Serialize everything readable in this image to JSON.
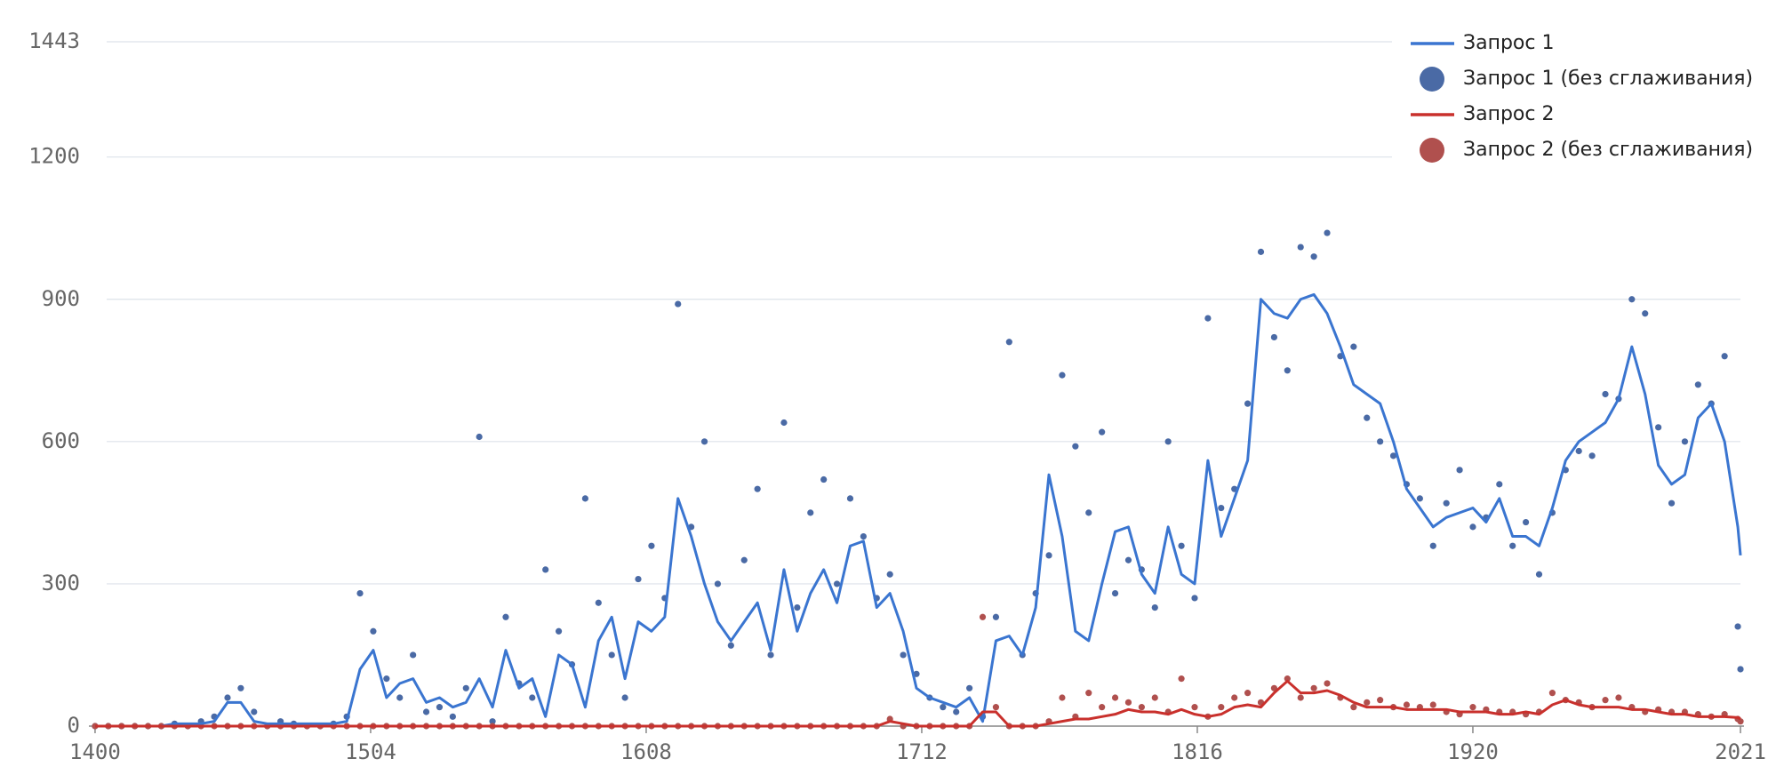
{
  "chart_data": {
    "type": "line",
    "x": [
      1400,
      1405,
      1410,
      1415,
      1420,
      1425,
      1430,
      1435,
      1440,
      1445,
      1450,
      1455,
      1460,
      1465,
      1470,
      1475,
      1480,
      1485,
      1490,
      1495,
      1500,
      1505,
      1510,
      1515,
      1520,
      1525,
      1530,
      1535,
      1540,
      1545,
      1550,
      1555,
      1560,
      1565,
      1570,
      1575,
      1580,
      1585,
      1590,
      1595,
      1600,
      1605,
      1610,
      1615,
      1620,
      1625,
      1630,
      1635,
      1640,
      1645,
      1650,
      1655,
      1660,
      1665,
      1670,
      1675,
      1680,
      1685,
      1690,
      1695,
      1700,
      1705,
      1710,
      1715,
      1720,
      1725,
      1730,
      1735,
      1740,
      1745,
      1750,
      1755,
      1760,
      1765,
      1770,
      1775,
      1780,
      1785,
      1790,
      1795,
      1800,
      1805,
      1810,
      1815,
      1820,
      1825,
      1830,
      1835,
      1840,
      1845,
      1850,
      1855,
      1860,
      1865,
      1870,
      1875,
      1880,
      1885,
      1890,
      1895,
      1900,
      1905,
      1910,
      1915,
      1920,
      1925,
      1930,
      1935,
      1940,
      1945,
      1950,
      1955,
      1960,
      1965,
      1970,
      1975,
      1980,
      1985,
      1990,
      1995,
      2000,
      2005,
      2010,
      2015,
      2020,
      2021
    ],
    "series": [
      {
        "name": "Запрос 1",
        "style": "line",
        "color": "#3a75d0",
        "values": [
          0,
          0,
          0,
          0,
          0,
          0,
          5,
          5,
          5,
          10,
          50,
          50,
          10,
          5,
          5,
          5,
          5,
          5,
          5,
          10,
          120,
          160,
          60,
          90,
          100,
          50,
          60,
          40,
          50,
          100,
          40,
          160,
          80,
          100,
          20,
          150,
          130,
          40,
          180,
          230,
          100,
          220,
          200,
          230,
          480,
          400,
          300,
          220,
          180,
          220,
          260,
          160,
          330,
          200,
          280,
          330,
          260,
          380,
          390,
          250,
          280,
          200,
          80,
          60,
          50,
          40,
          60,
          10,
          180,
          190,
          150,
          250,
          530,
          400,
          200,
          180,
          300,
          410,
          420,
          320,
          280,
          420,
          320,
          300,
          560,
          400,
          480,
          560,
          900,
          870,
          860,
          900,
          910,
          870,
          800,
          720,
          700,
          680,
          600,
          500,
          460,
          420,
          440,
          450,
          460,
          430,
          480,
          400,
          400,
          380,
          460,
          560,
          600,
          620,
          640,
          690,
          800,
          700,
          550,
          510,
          530,
          650,
          680,
          600,
          420,
          360
        ]
      },
      {
        "name": "Запрос 1 (без сглаживания)",
        "style": "points",
        "color": "#4a6aa5",
        "values": [
          0,
          0,
          0,
          0,
          0,
          0,
          5,
          0,
          10,
          20,
          60,
          80,
          30,
          0,
          10,
          5,
          0,
          0,
          5,
          20,
          280,
          200,
          100,
          60,
          150,
          30,
          40,
          20,
          80,
          610,
          10,
          230,
          90,
          60,
          330,
          200,
          130,
          480,
          260,
          150,
          60,
          310,
          380,
          270,
          890,
          420,
          600,
          300,
          170,
          350,
          500,
          150,
          640,
          250,
          450,
          520,
          300,
          480,
          400,
          270,
          320,
          150,
          110,
          60,
          40,
          30,
          80,
          20,
          230,
          810,
          150,
          280,
          360,
          740,
          590,
          450,
          620,
          280,
          350,
          330,
          250,
          600,
          380,
          270,
          860,
          460,
          500,
          680,
          1000,
          820,
          750,
          1010,
          990,
          1040,
          780,
          800,
          650,
          600,
          570,
          510,
          480,
          380,
          470,
          540,
          420,
          440,
          510,
          380,
          430,
          320,
          450,
          540,
          580,
          570,
          700,
          690,
          900,
          870,
          630,
          470,
          600,
          720,
          680,
          780,
          210,
          120
        ]
      },
      {
        "name": "Запрос 2",
        "style": "line",
        "color": "#c9302c",
        "values": [
          0,
          0,
          0,
          0,
          0,
          0,
          0,
          0,
          0,
          0,
          0,
          0,
          0,
          0,
          0,
          0,
          0,
          0,
          0,
          0,
          0,
          0,
          0,
          0,
          0,
          0,
          0,
          0,
          0,
          0,
          0,
          0,
          0,
          0,
          0,
          0,
          0,
          0,
          0,
          0,
          0,
          0,
          0,
          0,
          0,
          0,
          0,
          0,
          0,
          0,
          0,
          0,
          0,
          0,
          0,
          0,
          0,
          0,
          0,
          0,
          10,
          5,
          0,
          0,
          0,
          0,
          0,
          30,
          30,
          0,
          0,
          0,
          5,
          10,
          15,
          15,
          20,
          25,
          35,
          30,
          30,
          25,
          35,
          25,
          20,
          25,
          40,
          45,
          40,
          70,
          95,
          70,
          70,
          75,
          65,
          50,
          40,
          40,
          40,
          35,
          35,
          35,
          35,
          30,
          30,
          30,
          25,
          25,
          30,
          25,
          45,
          55,
          45,
          40,
          40,
          40,
          35,
          35,
          30,
          25,
          25,
          20,
          20,
          20,
          18,
          15
        ]
      },
      {
        "name": "Запрос 2 (без сглаживания)",
        "style": "points",
        "color": "#b0504e",
        "values": [
          0,
          0,
          0,
          0,
          0,
          0,
          0,
          0,
          0,
          0,
          0,
          0,
          0,
          0,
          0,
          0,
          0,
          0,
          0,
          0,
          0,
          0,
          0,
          0,
          0,
          0,
          0,
          0,
          0,
          0,
          0,
          0,
          0,
          0,
          0,
          0,
          0,
          0,
          0,
          0,
          0,
          0,
          0,
          0,
          0,
          0,
          0,
          0,
          0,
          0,
          0,
          0,
          0,
          0,
          0,
          0,
          0,
          0,
          0,
          0,
          15,
          0,
          0,
          0,
          0,
          0,
          0,
          230,
          40,
          0,
          0,
          0,
          10,
          60,
          20,
          70,
          40,
          60,
          50,
          40,
          60,
          30,
          100,
          40,
          20,
          40,
          60,
          70,
          50,
          80,
          100,
          60,
          80,
          90,
          60,
          40,
          50,
          55,
          40,
          45,
          40,
          45,
          30,
          25,
          40,
          35,
          30,
          30,
          25,
          30,
          70,
          55,
          50,
          40,
          55,
          60,
          40,
          30,
          35,
          30,
          30,
          25,
          20,
          25,
          15,
          10
        ]
      }
    ],
    "xlim": [
      1397,
      2023
    ],
    "xticks": [
      1400,
      1504,
      1608,
      1712,
      1816,
      1920,
      2021
    ],
    "ylim": [
      0,
      1443
    ],
    "yticks": [
      0,
      300,
      600,
      900,
      1200,
      1443
    ],
    "grid": true,
    "legend": "top-right"
  }
}
